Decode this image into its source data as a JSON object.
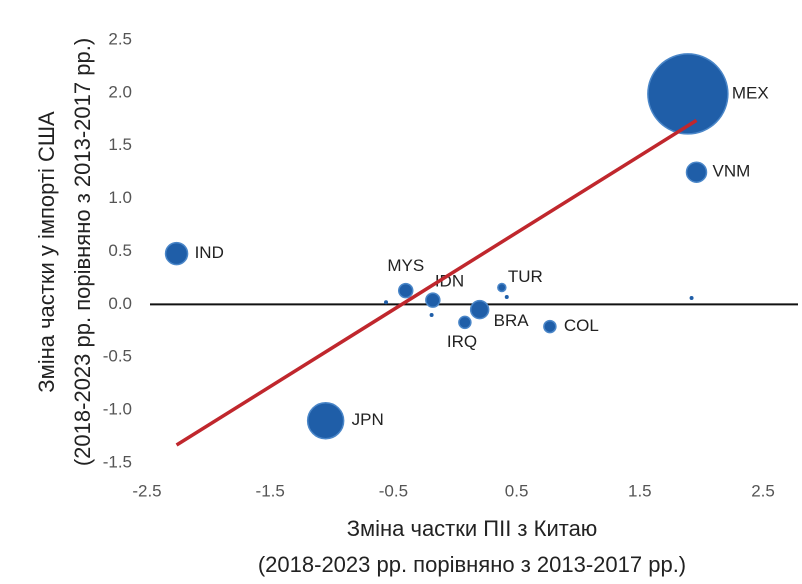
{
  "chart_data": {
    "type": "scatter",
    "xlabel": [
      "Зміна частки ПІІ з Китаю",
      "(2018-2023 рр. порівняно з 2013-2017 рр.)"
    ],
    "ylabel": [
      "Зміна частки у імпорті США",
      "(2018-2023 рр. порівняно з 2013-2017 рр.)"
    ],
    "labels": [
      "MEX",
      "VNM",
      "IND",
      "JPN",
      "MYS",
      "IDN",
      "TUR",
      "BRA",
      "IRQ",
      "COL",
      null,
      null,
      null,
      null
    ],
    "x": [
      1.89,
      1.96,
      -2.26,
      -1.05,
      -0.4,
      -0.18,
      0.38,
      0.2,
      0.08,
      0.77,
      -0.56,
      -0.19,
      0.42,
      1.92
    ],
    "y": [
      1.99,
      1.25,
      0.48,
      -1.1,
      0.13,
      0.04,
      0.16,
      -0.05,
      -0.17,
      -0.21,
      0.02,
      -0.1,
      0.07,
      0.06
    ],
    "sizes": [
      40,
      10,
      11,
      18,
      7,
      7,
      4,
      9,
      6,
      6,
      2,
      2,
      2,
      2
    ],
    "color": "#1f5ea8",
    "trendline": {
      "x": [
        -2.26,
        1.96
      ],
      "y": [
        -1.33,
        1.74
      ],
      "color": "#c0272d"
    },
    "xlim": [
      -2.5,
      2.8
    ],
    "ylim": [
      -1.5,
      2.5
    ],
    "xticks": [
      -2.5,
      -1.5,
      -0.5,
      0.5,
      1.5,
      2.5
    ],
    "yticks": [
      {
        "value": 2.5,
        "label": "2.5"
      },
      {
        "value": 2,
        "label": "2.0"
      },
      1.5,
      {
        "value": 1,
        "label": "1.0"
      },
      0.5,
      {
        "value": 0,
        "label": "0.0"
      },
      -0.5,
      {
        "value": -1,
        "label": "-1.0"
      },
      -1.5
    ],
    "zero_line": true
  }
}
